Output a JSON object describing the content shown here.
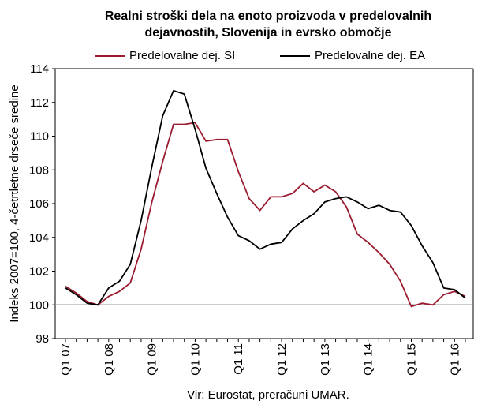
{
  "chart_data": {
    "type": "line",
    "title_line1": "Realni stroški dela na enoto proizvoda v predelovalnih",
    "title_line2": "dejavnostih, Slovenija in evrsko območje",
    "ylabel": "Indeks 2007=100, 4-četrtletne drseče sredine",
    "source": "Vir: Eurostat, preračuni UMAR.",
    "ylim": [
      98,
      114
    ],
    "yticks": [
      "98",
      "100",
      "102",
      "104",
      "106",
      "108",
      "110",
      "112",
      "114"
    ],
    "xtick_labels": [
      "Q1 07",
      "Q1 08",
      "Q1 09",
      "Q1 10",
      "Q1 11",
      "Q1 12",
      "Q1 13",
      "Q1 14",
      "Q1 15",
      "Q1 16"
    ],
    "x": [
      "Q1 07",
      "Q2 07",
      "Q3 07",
      "Q4 07",
      "Q1 08",
      "Q2 08",
      "Q3 08",
      "Q4 08",
      "Q1 09",
      "Q2 09",
      "Q3 09",
      "Q4 09",
      "Q1 10",
      "Q2 10",
      "Q3 10",
      "Q4 10",
      "Q1 11",
      "Q2 11",
      "Q3 11",
      "Q4 11",
      "Q1 12",
      "Q2 12",
      "Q3 12",
      "Q4 12",
      "Q1 13",
      "Q2 13",
      "Q3 13",
      "Q4 13",
      "Q1 14",
      "Q2 14",
      "Q3 14",
      "Q4 14",
      "Q1 15",
      "Q2 15",
      "Q3 15",
      "Q4 15",
      "Q1 16",
      "Q2 16"
    ],
    "reference_line": 100,
    "series": [
      {
        "name": "Predelovalne dej. SI",
        "color": "#9b1b30",
        "values": [
          101.1,
          100.7,
          100.2,
          100.0,
          100.5,
          100.8,
          101.3,
          103.3,
          106.1,
          108.5,
          110.7,
          110.7,
          110.8,
          109.7,
          109.8,
          109.8,
          107.9,
          106.3,
          105.6,
          106.4,
          106.4,
          106.6,
          107.2,
          106.7,
          107.1,
          106.7,
          105.8,
          104.2,
          103.7,
          103.1,
          102.4,
          101.4,
          99.9,
          100.1,
          100.0,
          100.6,
          100.8,
          100.5
        ]
      },
      {
        "name": "Predelovalne dej. EA",
        "color": "#000000",
        "values": [
          101.0,
          100.6,
          100.1,
          100.0,
          101.0,
          101.4,
          102.4,
          105.0,
          108.2,
          111.2,
          112.7,
          112.5,
          110.4,
          108.1,
          106.6,
          105.2,
          104.1,
          103.8,
          103.3,
          103.6,
          103.7,
          104.5,
          105.0,
          105.4,
          106.1,
          106.3,
          106.4,
          106.1,
          105.7,
          105.9,
          105.6,
          105.5,
          104.7,
          103.5,
          102.5,
          101.0,
          100.9,
          100.4
        ]
      }
    ]
  }
}
